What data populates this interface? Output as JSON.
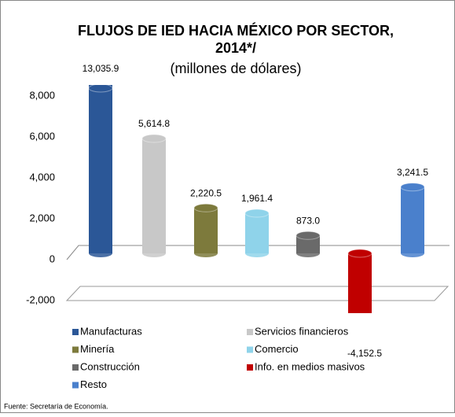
{
  "chart_data": {
    "type": "bar",
    "title": "FLUJOS DE IED HACIA MÉXICO POR SECTOR, 2014*/",
    "subtitle": "(millones de dólares)",
    "categories": [
      "Manufacturas",
      "Servicios financieros",
      "Minería",
      "Comercio",
      "Construcción",
      "Info. en medios masivos",
      "Resto"
    ],
    "values": [
      13035.9,
      5614.8,
      2220.5,
      1961.4,
      873.0,
      -4152.5,
      3241.5
    ],
    "value_labels": [
      "13,035.9",
      "5,614.8",
      "2,220.5",
      "1,961.4",
      "873.0",
      "-4,152.5",
      "3,241.5"
    ],
    "colors": [
      "#2b5797",
      "#c8c8c8",
      "#7d7a3c",
      "#8fd3ea",
      "#6a6a6a",
      "#c00000",
      "#4a80cc"
    ],
    "ylim": [
      -2000,
      8000
    ],
    "yticks": [
      {
        "value": -2000,
        "label": "-2,000"
      },
      0,
      {
        "value": 2000,
        "label": "2,000"
      },
      {
        "value": 4000,
        "label": "4,000"
      },
      {
        "value": 6000,
        "label": "6,000"
      },
      {
        "value": 8000,
        "label": "8,000"
      }
    ],
    "legend": "bottom",
    "source": "Fuente: Secretaría de Economía."
  }
}
